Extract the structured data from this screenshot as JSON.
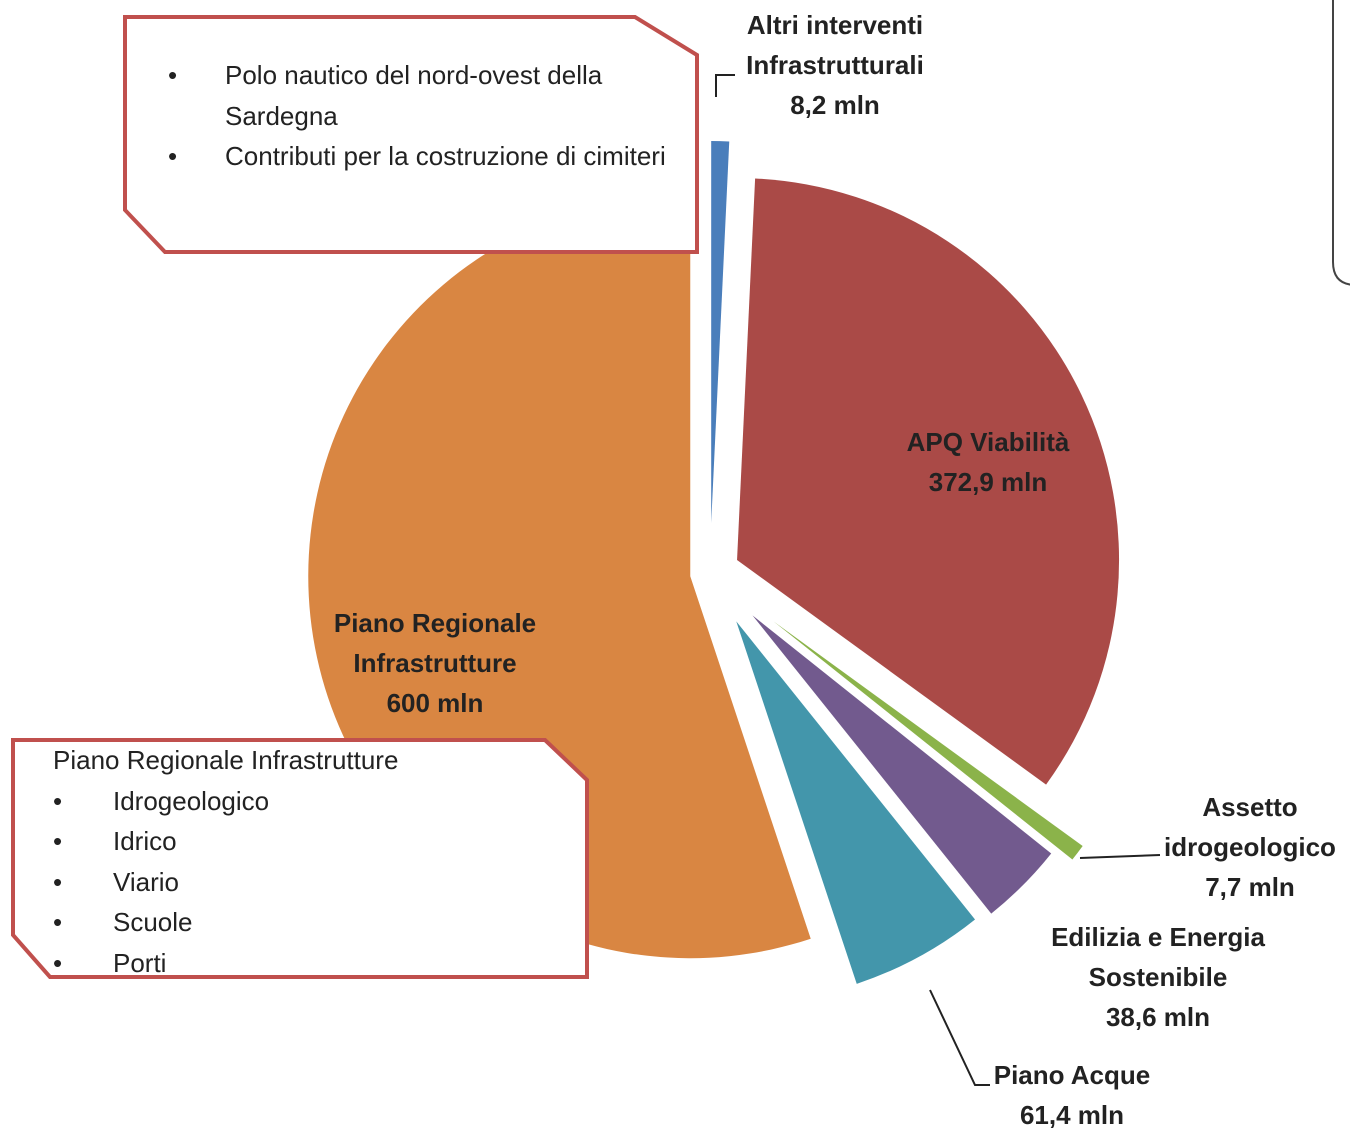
{
  "chart_data": {
    "type": "pie",
    "categories": [
      "Altri interventi Infrastrutturali",
      "APQ Viabilità",
      "Assetto idrogeologico",
      "Edilizia e Energia Sostenibile",
      "Piano Acque",
      "Piano Regionale Infrastrutture"
    ],
    "values": [
      8.2,
      372.9,
      7.7,
      38.6,
      61.4,
      600
    ],
    "value_labels": [
      "8,2 mln",
      "372,9 mln",
      "7,7 mln",
      "38,6 mln",
      "61,4 mln",
      "600 mln"
    ],
    "colors": [
      "#4a7ebb",
      "#aa4a47",
      "#8bb34a",
      "#725a8e",
      "#4396ab",
      "#d98642"
    ]
  },
  "notes": [
    {
      "items": [
        "Polo nautico del nord-ovest della Sardegna",
        "Contributi per la costruzione di cimiteri"
      ]
    },
    {
      "title": "Piano Regionale Infrastrutture",
      "items": [
        "Idrogeologico",
        "Idrico",
        "Viario",
        "Scuole",
        "Porti"
      ]
    }
  ]
}
